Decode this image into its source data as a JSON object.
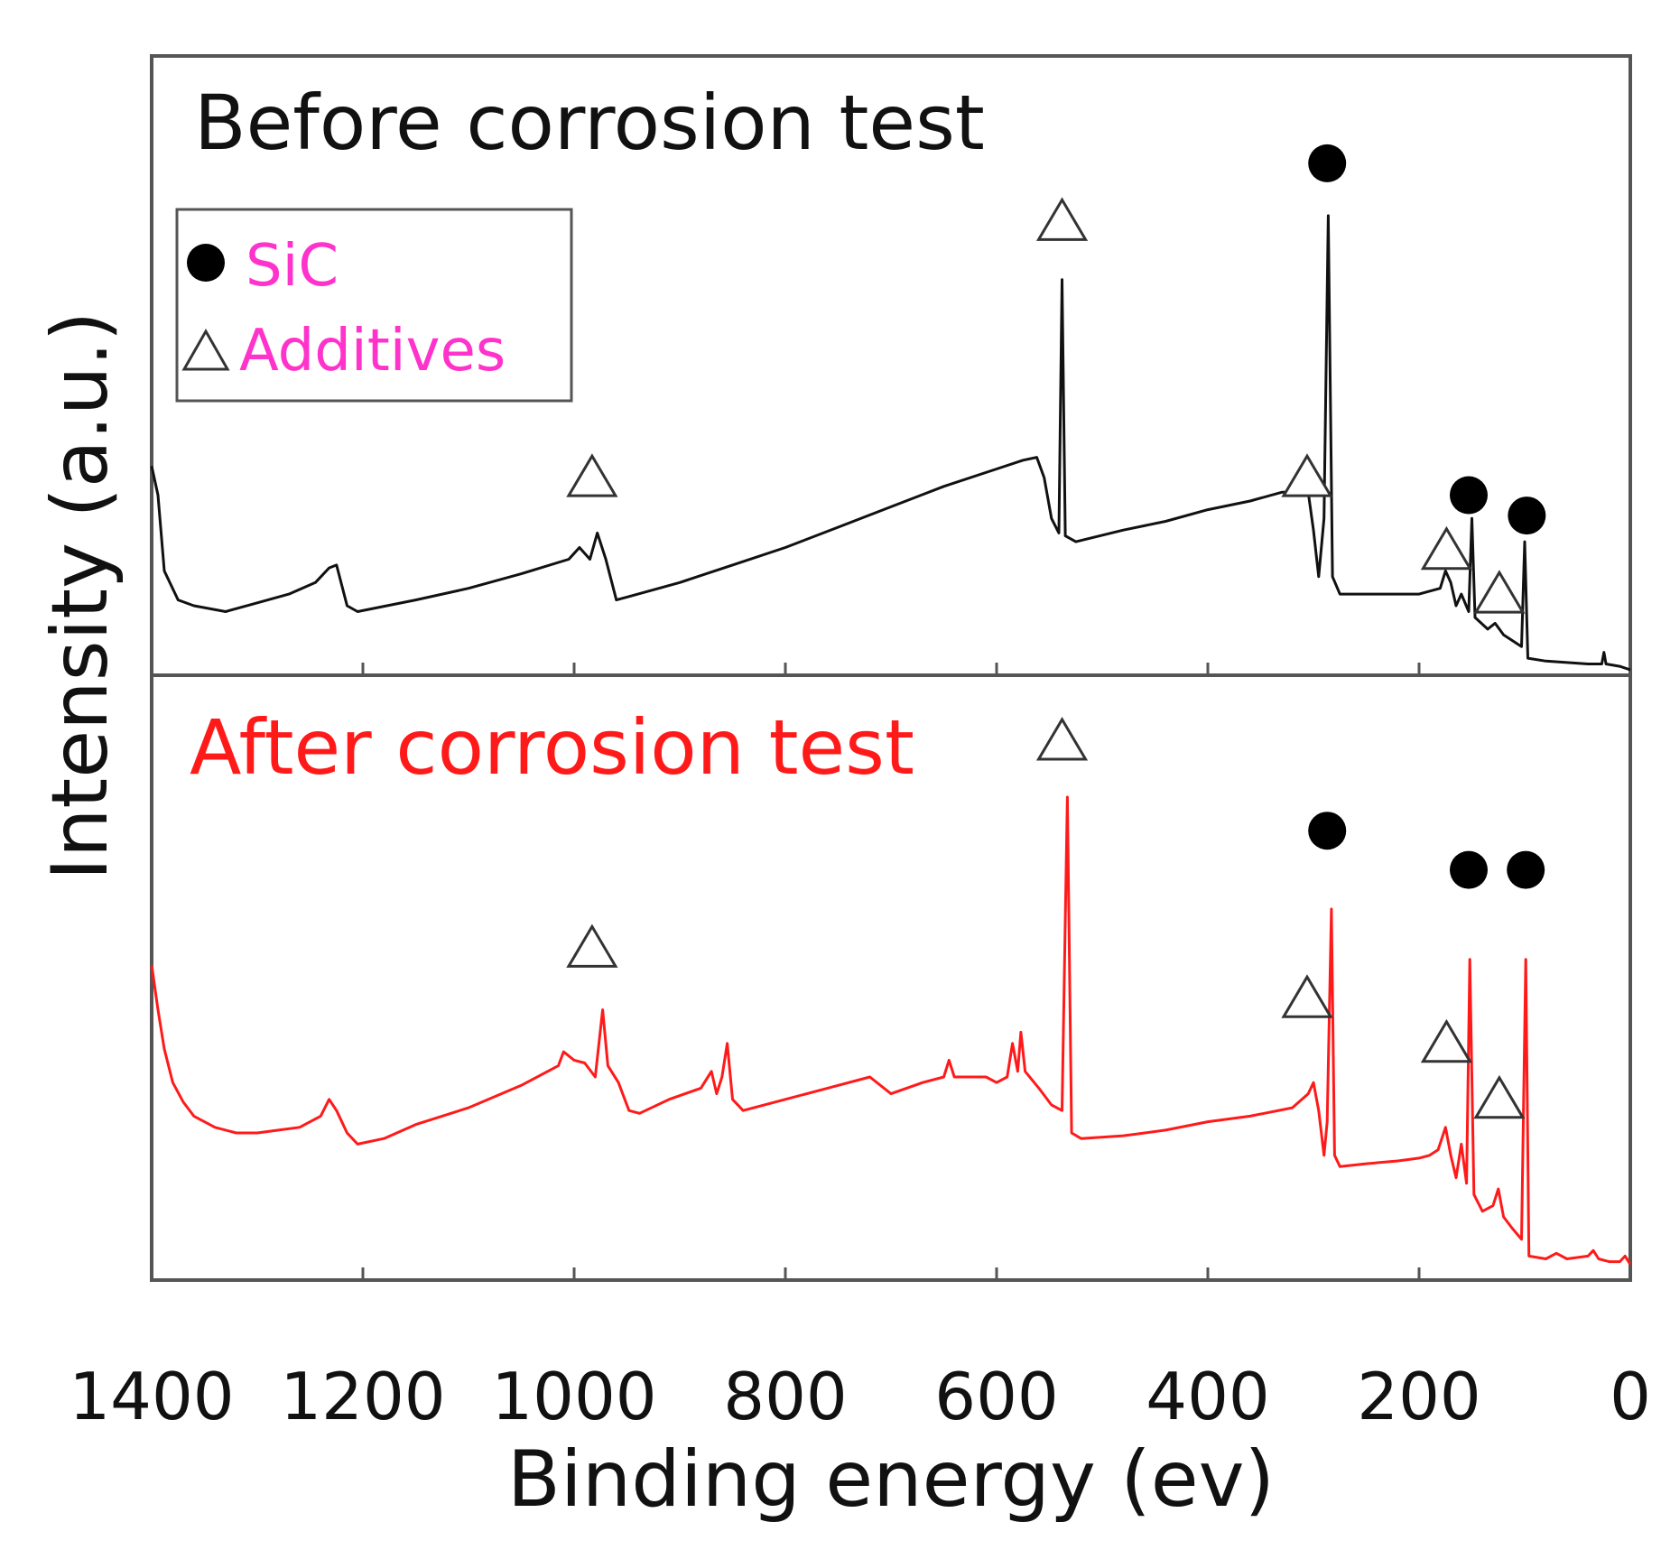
{
  "chart_data": {
    "type": "line",
    "xlabel": "Binding energy (ev)",
    "ylabel": "Intensity  (a.u.)",
    "xlim": [
      1400,
      0
    ],
    "xticks": [
      "1400",
      "1200",
      "1000",
      "800",
      "600",
      "400",
      "200",
      "0"
    ],
    "colors": {
      "before": "#111111",
      "after": "#ff1a1a",
      "legend_text": "#ff33cc",
      "frame": "#555555"
    },
    "legend": {
      "position": "top-left",
      "items": [
        {
          "marker": "circle",
          "label": "SiC"
        },
        {
          "marker": "triangle",
          "label": "Additives"
        }
      ]
    },
    "series": [
      {
        "name": "Before corrosion test",
        "title": "Before corrosion test",
        "points": [
          [
            1400,
            35
          ],
          [
            1394,
            30
          ],
          [
            1388,
            17
          ],
          [
            1375,
            12
          ],
          [
            1360,
            11
          ],
          [
            1330,
            10
          ],
          [
            1300,
            11.5
          ],
          [
            1270,
            13
          ],
          [
            1245,
            15
          ],
          [
            1232,
            17.5
          ],
          [
            1225,
            18
          ],
          [
            1215,
            11
          ],
          [
            1205,
            10
          ],
          [
            1150,
            12
          ],
          [
            1100,
            14
          ],
          [
            1050,
            16.5
          ],
          [
            1005,
            19
          ],
          [
            995,
            21
          ],
          [
            985,
            19
          ],
          [
            978,
            23.5
          ],
          [
            970,
            19
          ],
          [
            960,
            12
          ],
          [
            950,
            12.5
          ],
          [
            900,
            15
          ],
          [
            850,
            18
          ],
          [
            800,
            21
          ],
          [
            750,
            24.5
          ],
          [
            700,
            28
          ],
          [
            650,
            31.5
          ],
          [
            600,
            34.5
          ],
          [
            575,
            36
          ],
          [
            562,
            36.5
          ],
          [
            555,
            33
          ],
          [
            548,
            26
          ],
          [
            541,
            23.5
          ],
          [
            538,
            67
          ],
          [
            535,
            23
          ],
          [
            525,
            22
          ],
          [
            480,
            24
          ],
          [
            440,
            25.5
          ],
          [
            400,
            27.5
          ],
          [
            360,
            29
          ],
          [
            330,
            30.5
          ],
          [
            305,
            30.5
          ],
          [
            300,
            24
          ],
          [
            295,
            16
          ],
          [
            290,
            26
          ],
          [
            286,
            78
          ],
          [
            282,
            16
          ],
          [
            275,
            13
          ],
          [
            250,
            13
          ],
          [
            200,
            13
          ],
          [
            180,
            14
          ],
          [
            175,
            17
          ],
          [
            170,
            15
          ],
          [
            165,
            11
          ],
          [
            160,
            13
          ],
          [
            153,
            10
          ],
          [
            150,
            26
          ],
          [
            147,
            9
          ],
          [
            135,
            7
          ],
          [
            128,
            8
          ],
          [
            120,
            6
          ],
          [
            103,
            4
          ],
          [
            100,
            22
          ],
          [
            97,
            2
          ],
          [
            80,
            1.5
          ],
          [
            40,
            1
          ],
          [
            27,
            1
          ],
          [
            25,
            3
          ],
          [
            23,
            1
          ],
          [
            10,
            0.6
          ],
          [
            0,
            0
          ]
        ],
        "markers": [
          {
            "type": "triangle",
            "x": 538,
            "y": 77
          },
          {
            "type": "circle",
            "x": 287,
            "y": 87
          },
          {
            "type": "triangle",
            "x": 983,
            "y": 33
          },
          {
            "type": "triangle",
            "x": 306,
            "y": 33
          },
          {
            "type": "circle",
            "x": 153,
            "y": 30
          },
          {
            "type": "circle",
            "x": 98,
            "y": 26.5
          },
          {
            "type": "triangle",
            "x": 174,
            "y": 20.5
          },
          {
            "type": "triangle",
            "x": 124,
            "y": 13
          }
        ]
      },
      {
        "name": "After corrosion test",
        "title": "After corrosion test",
        "points": [
          [
            1400,
            55
          ],
          [
            1394,
            47
          ],
          [
            1388,
            40
          ],
          [
            1380,
            34
          ],
          [
            1370,
            30.5
          ],
          [
            1360,
            28
          ],
          [
            1340,
            26
          ],
          [
            1320,
            25
          ],
          [
            1300,
            25
          ],
          [
            1280,
            25.5
          ],
          [
            1260,
            26
          ],
          [
            1240,
            28
          ],
          [
            1232,
            31
          ],
          [
            1225,
            29
          ],
          [
            1215,
            25
          ],
          [
            1205,
            23
          ],
          [
            1180,
            24
          ],
          [
            1150,
            26.5
          ],
          [
            1100,
            29.5
          ],
          [
            1050,
            33.5
          ],
          [
            1015,
            37
          ],
          [
            1010,
            39.5
          ],
          [
            1000,
            38
          ],
          [
            990,
            37.5
          ],
          [
            980,
            35
          ],
          [
            973,
            47
          ],
          [
            968,
            37
          ],
          [
            958,
            34
          ],
          [
            948,
            29
          ],
          [
            938,
            28.5
          ],
          [
            910,
            31
          ],
          [
            880,
            33
          ],
          [
            870,
            36
          ],
          [
            865,
            32
          ],
          [
            860,
            35
          ],
          [
            855,
            41
          ],
          [
            850,
            31
          ],
          [
            840,
            29
          ],
          [
            800,
            31
          ],
          [
            760,
            33
          ],
          [
            720,
            35
          ],
          [
            700,
            32
          ],
          [
            670,
            34
          ],
          [
            650,
            35
          ],
          [
            645,
            38
          ],
          [
            640,
            35
          ],
          [
            610,
            35
          ],
          [
            600,
            34
          ],
          [
            590,
            35
          ],
          [
            585,
            41
          ],
          [
            580,
            36
          ],
          [
            577,
            43
          ],
          [
            573,
            36
          ],
          [
            560,
            33
          ],
          [
            548,
            30
          ],
          [
            538,
            29
          ],
          [
            533,
            85
          ],
          [
            529,
            25
          ],
          [
            520,
            24
          ],
          [
            480,
            24.5
          ],
          [
            440,
            25.5
          ],
          [
            400,
            27
          ],
          [
            360,
            28
          ],
          [
            320,
            29.5
          ],
          [
            305,
            32
          ],
          [
            300,
            34
          ],
          [
            295,
            29
          ],
          [
            290,
            21
          ],
          [
            287,
            27
          ],
          [
            283,
            65
          ],
          [
            280,
            21
          ],
          [
            275,
            19
          ],
          [
            250,
            19.5
          ],
          [
            220,
            20
          ],
          [
            200,
            20.5
          ],
          [
            190,
            21
          ],
          [
            182,
            22
          ],
          [
            175,
            26
          ],
          [
            170,
            21
          ],
          [
            165,
            17
          ],
          [
            160,
            23
          ],
          [
            155,
            16
          ],
          [
            152,
            56
          ],
          [
            148,
            14
          ],
          [
            140,
            11
          ],
          [
            130,
            12
          ],
          [
            125,
            15
          ],
          [
            120,
            10
          ],
          [
            112,
            8
          ],
          [
            103,
            6
          ],
          [
            99,
            56
          ],
          [
            96,
            3
          ],
          [
            80,
            2.5
          ],
          [
            70,
            3.5
          ],
          [
            60,
            2.5
          ],
          [
            40,
            3
          ],
          [
            35,
            4
          ],
          [
            30,
            2.5
          ],
          [
            20,
            2
          ],
          [
            10,
            2
          ],
          [
            5,
            3
          ],
          [
            0,
            1.5
          ]
        ],
        "markers": [
          {
            "type": "triangle",
            "x": 538,
            "y": 95
          },
          {
            "type": "circle",
            "x": 287,
            "y": 79
          },
          {
            "type": "triangle",
            "x": 983,
            "y": 58
          },
          {
            "type": "triangle",
            "x": 306,
            "y": 49
          },
          {
            "type": "circle",
            "x": 153,
            "y": 72
          },
          {
            "type": "circle",
            "x": 99,
            "y": 72
          },
          {
            "type": "triangle",
            "x": 174,
            "y": 41
          },
          {
            "type": "triangle",
            "x": 124,
            "y": 31
          }
        ]
      }
    ]
  }
}
